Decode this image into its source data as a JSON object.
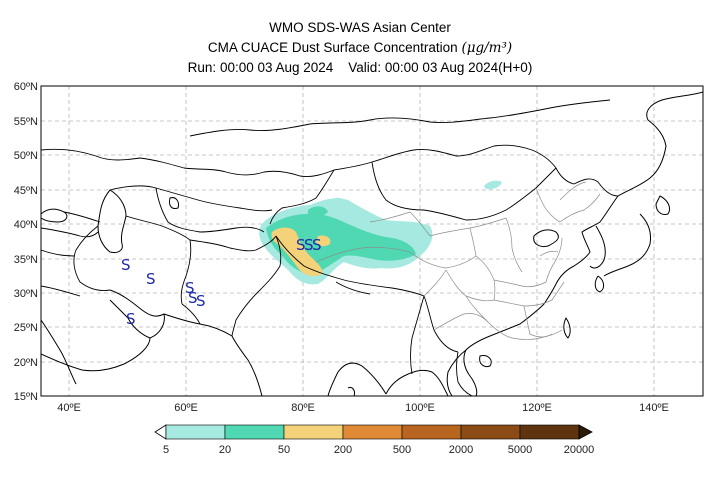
{
  "title": {
    "line1": "WMO SDS-WAS Asian Center",
    "line2_text": "CMA CUACE Dust Surface Concentration ",
    "line2_unit": "(μg/m³)",
    "line3": "Run: 00:00 03 Aug 2024    Valid: 00:00 03 Aug 2024(H+0)"
  },
  "map": {
    "lat_labels": [
      "60ºN",
      "55ºN",
      "50ºN",
      "45ºN",
      "40ºN",
      "35ºN",
      "30ºN",
      "25ºN",
      "20ºN",
      "15ºN"
    ],
    "lon_labels": [
      "40ºE",
      "60ºE",
      "80ºE",
      "100ºE",
      "120ºE",
      "140ºE"
    ],
    "storm_symbol": "S",
    "colors": {
      "land_outline": "#000000",
      "province_outline": "#8c8c8c",
      "grid": "#b5b5b5",
      "storm_symbol": "#1f2aa8"
    }
  },
  "colorbar": {
    "labels": [
      "5",
      "20",
      "50",
      "200",
      "500",
      "2000",
      "5000",
      "20000"
    ],
    "colors": [
      "#a6e9e1",
      "#4fd8b2",
      "#f3d27a",
      "#e08a37",
      "#b8651f",
      "#8a4b17",
      "#5e3410",
      "#2e1a08"
    ]
  }
}
